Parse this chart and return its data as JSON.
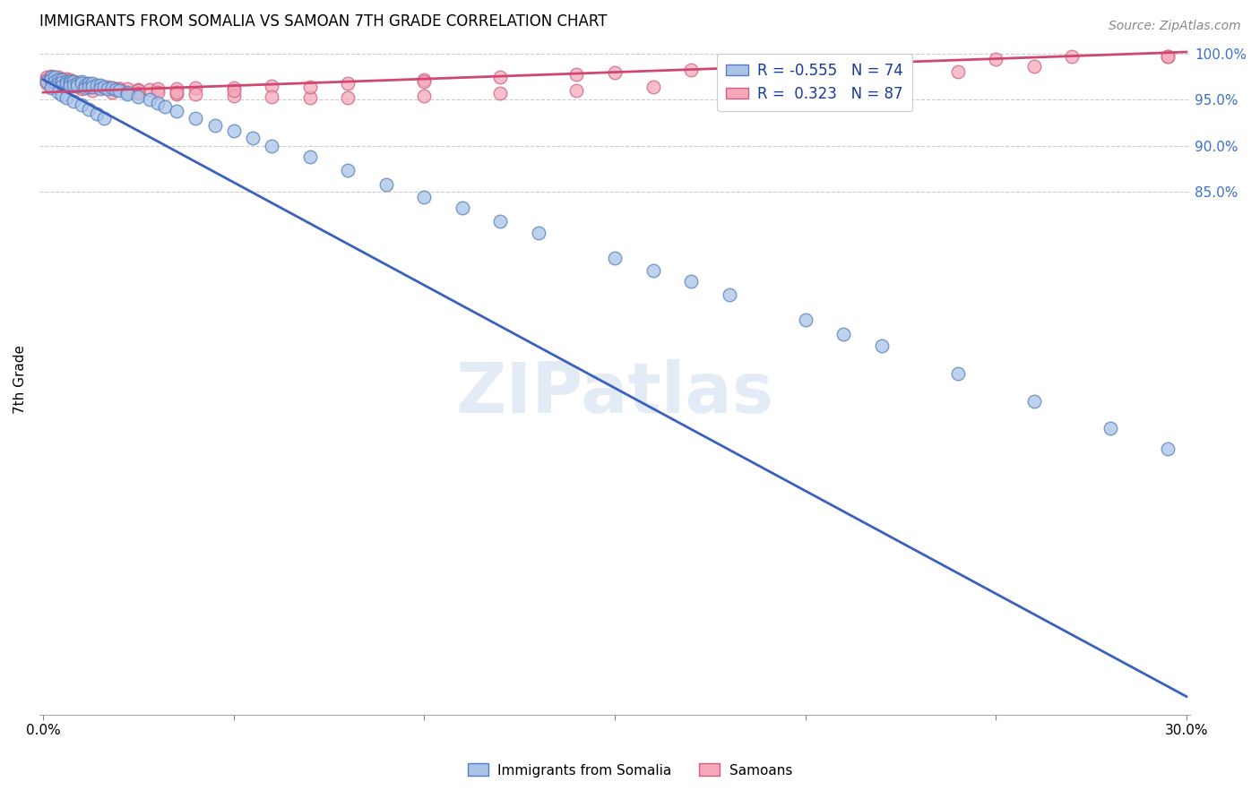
{
  "title": "IMMIGRANTS FROM SOMALIA VS SAMOAN 7TH GRADE CORRELATION CHART",
  "source": "Source: ZipAtlas.com",
  "ylabel": "7th Grade",
  "watermark": "ZIPatlas",
  "legend_r1": "R = -0.555",
  "legend_n1": "N = 74",
  "legend_r2": "R =  0.323",
  "legend_n2": "N = 87",
  "somalia_color": "#aac4e8",
  "samoa_color": "#f5a8bc",
  "somalia_edge": "#5580c0",
  "samoa_edge": "#d06080",
  "line_somalia": "#3a60c0",
  "line_samoa": "#d04870",
  "xlim_min": 0.0,
  "xlim_max": 0.3,
  "ylim_min": 0.28,
  "ylim_max": 1.01,
  "somalia_line_y0": 0.972,
  "somalia_line_y1": 0.3,
  "samoa_line_y0": 0.958,
  "samoa_line_y1": 1.002,
  "right_yticks": [
    1.0,
    0.95,
    0.9,
    0.85
  ],
  "right_yticklabels": [
    "100.0%",
    "95.0%",
    "90.0%",
    "85.0%"
  ],
  "xtick_positions": [
    0.0,
    0.05,
    0.1,
    0.15,
    0.2,
    0.25,
    0.3
  ],
  "xtick_labels": [
    "0.0%",
    "",
    "",
    "",
    "",
    "",
    "30.0%"
  ],
  "somalia_x": [
    0.001,
    0.002,
    0.002,
    0.003,
    0.003,
    0.004,
    0.004,
    0.005,
    0.005,
    0.005,
    0.006,
    0.006,
    0.007,
    0.007,
    0.007,
    0.008,
    0.008,
    0.009,
    0.009,
    0.01,
    0.01,
    0.011,
    0.011,
    0.012,
    0.012,
    0.013,
    0.013,
    0.014,
    0.015,
    0.015,
    0.016,
    0.017,
    0.018,
    0.019,
    0.02,
    0.022,
    0.022,
    0.025,
    0.028,
    0.03,
    0.032,
    0.035,
    0.04,
    0.045,
    0.05,
    0.055,
    0.06,
    0.07,
    0.08,
    0.09,
    0.1,
    0.11,
    0.12,
    0.13,
    0.15,
    0.16,
    0.17,
    0.18,
    0.2,
    0.21,
    0.22,
    0.24,
    0.26,
    0.28,
    0.295,
    0.002,
    0.004,
    0.005,
    0.006,
    0.008,
    0.01,
    0.012,
    0.014,
    0.016
  ],
  "somalia_y": [
    0.97,
    0.975,
    0.972,
    0.975,
    0.97,
    0.972,
    0.968,
    0.972,
    0.969,
    0.965,
    0.97,
    0.968,
    0.97,
    0.968,
    0.965,
    0.97,
    0.966,
    0.968,
    0.965,
    0.97,
    0.968,
    0.966,
    0.963,
    0.968,
    0.964,
    0.968,
    0.964,
    0.966,
    0.966,
    0.962,
    0.964,
    0.962,
    0.963,
    0.961,
    0.96,
    0.958,
    0.956,
    0.953,
    0.95,
    0.946,
    0.943,
    0.938,
    0.93,
    0.922,
    0.916,
    0.908,
    0.9,
    0.888,
    0.873,
    0.858,
    0.844,
    0.832,
    0.818,
    0.805,
    0.778,
    0.764,
    0.752,
    0.738,
    0.71,
    0.695,
    0.682,
    0.652,
    0.622,
    0.592,
    0.57,
    0.963,
    0.958,
    0.955,
    0.952,
    0.948,
    0.944,
    0.94,
    0.935,
    0.93
  ],
  "samoa_x": [
    0.001,
    0.001,
    0.001,
    0.002,
    0.002,
    0.003,
    0.003,
    0.004,
    0.004,
    0.004,
    0.005,
    0.005,
    0.006,
    0.006,
    0.007,
    0.007,
    0.008,
    0.008,
    0.009,
    0.009,
    0.01,
    0.01,
    0.011,
    0.011,
    0.012,
    0.013,
    0.014,
    0.015,
    0.016,
    0.017,
    0.018,
    0.019,
    0.02,
    0.022,
    0.025,
    0.028,
    0.03,
    0.035,
    0.04,
    0.05,
    0.06,
    0.08,
    0.1,
    0.12,
    0.15,
    0.17,
    0.2,
    0.22,
    0.25,
    0.27,
    0.005,
    0.007,
    0.009,
    0.012,
    0.015,
    0.02,
    0.025,
    0.03,
    0.035,
    0.04,
    0.05,
    0.06,
    0.07,
    0.08,
    0.1,
    0.12,
    0.14,
    0.16,
    0.18,
    0.2,
    0.22,
    0.24,
    0.26,
    0.295,
    0.003,
    0.006,
    0.008,
    0.01,
    0.013,
    0.018,
    0.025,
    0.035,
    0.05,
    0.07,
    0.1,
    0.14,
    0.295
  ],
  "samoa_y": [
    0.975,
    0.972,
    0.968,
    0.976,
    0.971,
    0.975,
    0.97,
    0.975,
    0.972,
    0.968,
    0.973,
    0.969,
    0.973,
    0.969,
    0.972,
    0.968,
    0.97,
    0.966,
    0.969,
    0.965,
    0.968,
    0.964,
    0.968,
    0.965,
    0.967,
    0.965,
    0.964,
    0.964,
    0.963,
    0.964,
    0.963,
    0.962,
    0.962,
    0.962,
    0.961,
    0.961,
    0.962,
    0.962,
    0.963,
    0.963,
    0.965,
    0.968,
    0.972,
    0.975,
    0.98,
    0.983,
    0.988,
    0.99,
    0.994,
    0.997,
    0.972,
    0.97,
    0.968,
    0.966,
    0.964,
    0.962,
    0.96,
    0.958,
    0.956,
    0.956,
    0.954,
    0.953,
    0.952,
    0.952,
    0.954,
    0.957,
    0.96,
    0.964,
    0.968,
    0.972,
    0.976,
    0.981,
    0.986,
    0.997,
    0.972,
    0.968,
    0.965,
    0.962,
    0.96,
    0.958,
    0.957,
    0.958,
    0.96,
    0.964,
    0.97,
    0.978,
    0.997
  ]
}
